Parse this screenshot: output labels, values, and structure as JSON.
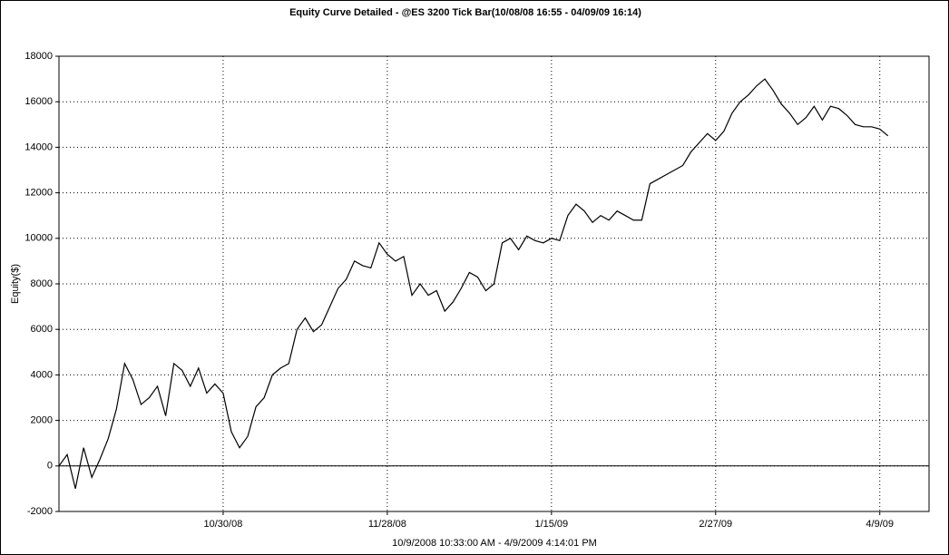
{
  "chart_data": {
    "type": "line",
    "title": "Equity Curve Detailed - @ES 3200 Tick Bar(10/08/08 16:55 - 04/09/09 16:14)",
    "x_label": "10/9/2008 10:33:00 AM - 4/9/2009 4:14:01 PM",
    "y_label": "Equity($)",
    "categories": [
      null,
      null,
      null,
      null,
      null,
      null,
      null,
      null,
      null,
      null,
      null,
      null,
      null,
      null,
      null,
      null,
      null,
      null,
      null,
      null,
      "10/30/08",
      null,
      null,
      null,
      null,
      null,
      null,
      null,
      null,
      null,
      null,
      null,
      null,
      null,
      null,
      null,
      null,
      null,
      null,
      null,
      "11/28/08",
      null,
      null,
      null,
      null,
      null,
      null,
      null,
      null,
      null,
      null,
      null,
      null,
      null,
      null,
      null,
      null,
      null,
      null,
      null,
      "1/15/09",
      null,
      null,
      null,
      null,
      null,
      null,
      null,
      null,
      null,
      null,
      null,
      null,
      null,
      null,
      null,
      null,
      null,
      null,
      null,
      "2/27/09",
      null,
      null,
      null,
      null,
      null,
      null,
      null,
      null,
      null,
      null,
      null,
      null,
      null,
      null,
      null,
      null,
      null,
      null,
      null,
      "4/9/09",
      null,
      null,
      null,
      null,
      null,
      null
    ],
    "series": [
      {
        "name": "Equity",
        "color": "#000000",
        "values": [
          0,
          500,
          -1000,
          800,
          -500,
          300,
          1200,
          2500,
          4500,
          3800,
          2700,
          3000,
          3500,
          2200,
          4500,
          4200,
          3500,
          4300,
          3200,
          3600,
          3200,
          1500,
          800,
          1300,
          2600,
          3000,
          4000,
          4300,
          4500,
          6000,
          6500,
          5900,
          6200,
          7000,
          7800,
          8200,
          9000,
          8800,
          8700,
          9800,
          9300,
          9000,
          9200,
          7500,
          8000,
          7500,
          7700,
          6800,
          7200,
          7800,
          8500,
          8300,
          7700,
          8000,
          9800,
          10000,
          9500,
          10100,
          9900,
          9800,
          10000,
          9900,
          11000,
          11500,
          11200,
          10700,
          11000,
          10800,
          11200,
          11000,
          10800,
          10800,
          12400,
          12600,
          12800,
          13000,
          13200,
          13800,
          14200,
          14600,
          14300,
          14700,
          15500,
          16000,
          16300,
          16700,
          17000,
          16500,
          15900,
          15500,
          15000,
          15300,
          15800,
          15200,
          15800,
          15700,
          15400,
          15000,
          14900,
          14900,
          14800,
          14500,
          null,
          null,
          null,
          null,
          null
        ]
      }
    ],
    "ylim": [
      -2000,
      18000
    ],
    "yticks": [
      -2000,
      0,
      2000,
      4000,
      6000,
      8000,
      10000,
      12000,
      14000,
      16000,
      18000
    ],
    "grid": true
  }
}
